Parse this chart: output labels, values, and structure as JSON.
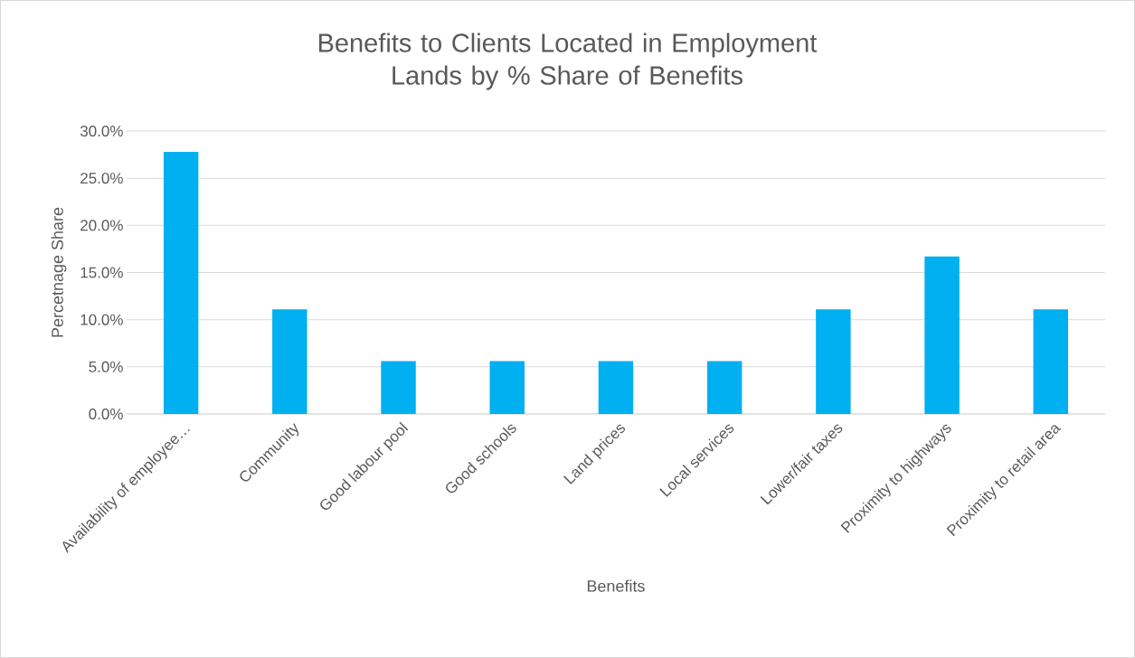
{
  "chart_data": {
    "type": "bar",
    "title": "Benefits to Clients Located in Employment Lands by % Share of Benefits",
    "xlabel": "Benefits",
    "ylabel": "Percetnage Share",
    "categories": [
      "Availability of employee…",
      "Community",
      "Good labour pool",
      "Good schools",
      "Land prices",
      "Local services",
      "Lower/fair taxes",
      "Proximity to highways",
      "Proximity to retail area"
    ],
    "values": [
      27.8,
      11.1,
      5.6,
      5.6,
      5.6,
      5.6,
      11.1,
      16.7,
      11.1
    ],
    "color": "#00b0f0",
    "ylim": [
      0,
      30
    ],
    "yticks": [
      {
        "value": 0,
        "label": "0.0%"
      },
      {
        "value": 5,
        "label": "5.0%"
      },
      {
        "value": 10,
        "label": "10.0%"
      },
      {
        "value": 15,
        "label": "15.0%"
      },
      {
        "value": 20,
        "label": "20.0%"
      },
      {
        "value": 25,
        "label": "25.0%"
      },
      {
        "value": 30,
        "label": "30.0%"
      }
    ],
    "grid": "y"
  }
}
